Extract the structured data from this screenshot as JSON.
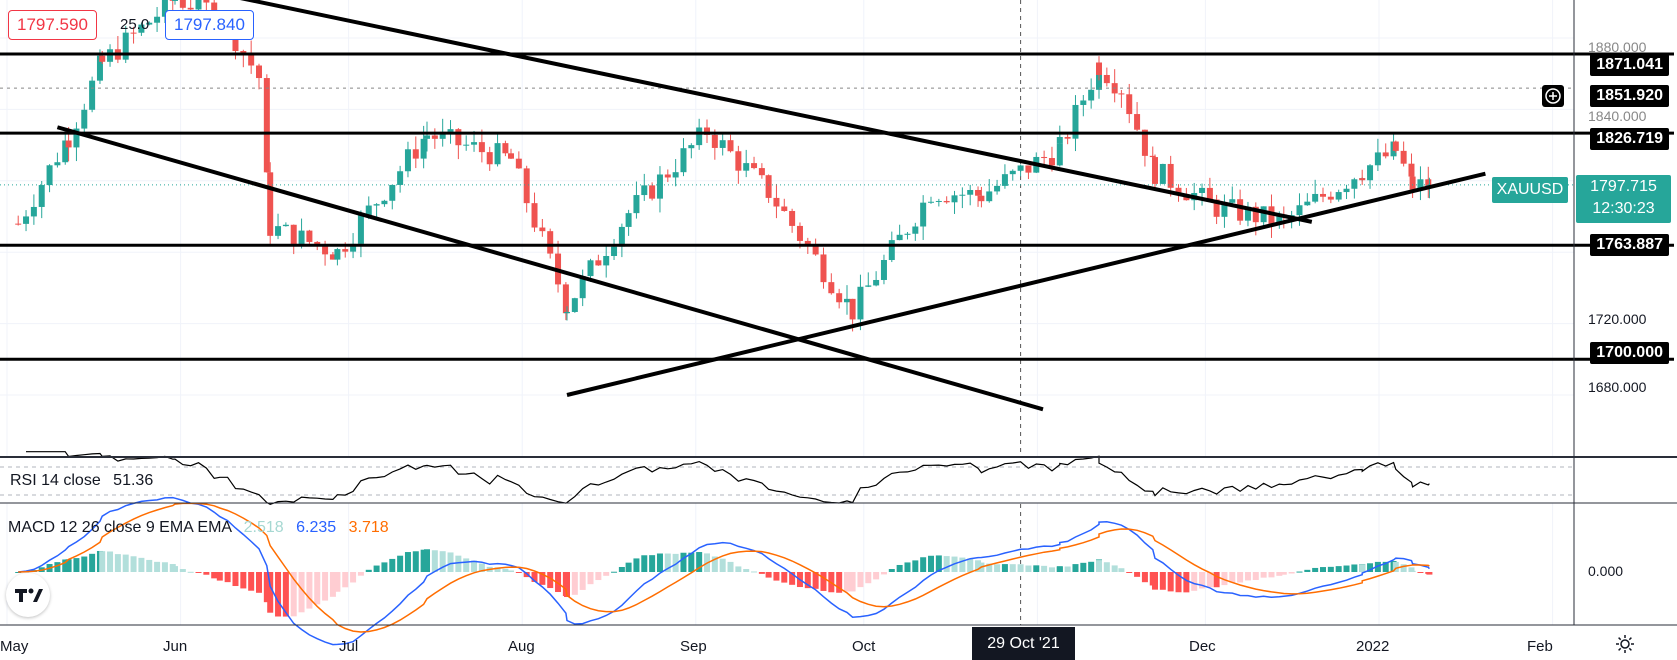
{
  "symbol": "XAUUSD",
  "ohlc_badges": {
    "sell": "1797.590",
    "spread": "25.0",
    "buy": "1797.840"
  },
  "price_axis": {
    "ticks": [
      "1880.000",
      "1840.000",
      "1720.000",
      "1680.000"
    ],
    "levels": [
      "1871.041",
      "1851.920",
      "1826.719",
      "1763.887",
      "1700.000"
    ],
    "current_price": "1797.715",
    "countdown": "12:30:23"
  },
  "time_axis": {
    "months": [
      "May",
      "Jun",
      "Jul",
      "Aug",
      "Sep",
      "Oct",
      "Dec",
      "2022",
      "Feb"
    ],
    "crosshair_label": "29 Oct '21"
  },
  "rsi": {
    "label": "RSI 14 close",
    "value": "51.36"
  },
  "macd": {
    "label": "MACD 12 26 close 9 EMA EMA",
    "hist_value": "2.518",
    "macd_value": "6.235",
    "signal_value": "3.718",
    "zero_label": "0.000"
  },
  "colors": {
    "up": "#26a69a",
    "down": "#ef5350",
    "macd_line": "#2962ff",
    "signal_line": "#ff6d00",
    "hist_up_strong": "#26a69a",
    "hist_up_weak": "#b2dfdb",
    "hist_down_strong": "#ff5252",
    "hist_down_weak": "#ffcdd2",
    "badge_teal": "#26a69a"
  },
  "chart_data": {
    "type": "candlestick",
    "symbol": "XAUUSD",
    "interval": "1D",
    "ylim": [
      1672,
      1905
    ],
    "horizontal_levels": [
      1871.041,
      1826.719,
      1763.887,
      1700.0
    ],
    "dashed_levels": [
      1851.92
    ],
    "trendlines": [
      {
        "from": [
          "2021-05-10",
          1830
        ],
        "to": [
          "2021-11-02",
          1672
        ]
      },
      {
        "from": [
          "2021-05-28",
          1912
        ],
        "to": [
          "2021-12-20",
          1777
        ]
      },
      {
        "from": [
          "2021-08-09",
          1680
        ],
        "to": [
          "2022-01-20",
          1804
        ]
      }
    ],
    "close_series_anchors": [
      [
        "2021-05-03",
        1776
      ],
      [
        "2021-05-12",
        1825
      ],
      [
        "2021-05-18",
        1866
      ],
      [
        "2021-05-31",
        1902
      ],
      [
        "2021-06-08",
        1894
      ],
      [
        "2021-06-15",
        1858
      ],
      [
        "2021-06-17",
        1774
      ],
      [
        "2021-06-29",
        1760
      ],
      [
        "2021-07-15",
        1826
      ],
      [
        "2021-07-30",
        1812
      ],
      [
        "2021-08-09",
        1730
      ],
      [
        "2021-08-20",
        1782
      ],
      [
        "2021-09-03",
        1828
      ],
      [
        "2021-09-14",
        1794
      ],
      [
        "2021-09-29",
        1727
      ],
      [
        "2021-10-13",
        1794
      ],
      [
        "2021-10-22",
        1792
      ],
      [
        "2021-11-05",
        1818
      ],
      [
        "2021-11-12",
        1865
      ],
      [
        "2021-11-16",
        1852
      ],
      [
        "2021-11-22",
        1805
      ],
      [
        "2021-12-03",
        1785
      ],
      [
        "2021-12-15",
        1777
      ],
      [
        "2021-12-29",
        1806
      ],
      [
        "2022-01-04",
        1817
      ],
      [
        "2022-01-07",
        1797
      ],
      [
        "2022-01-10",
        1797.7
      ]
    ],
    "rsi": {
      "name": "RSI 14 close",
      "last": 51.36
    },
    "macd": {
      "name": "MACD 12 26 close 9 EMA EMA",
      "histogram_last": 2.518,
      "macd_last": 6.235,
      "signal_last": 3.718
    }
  }
}
